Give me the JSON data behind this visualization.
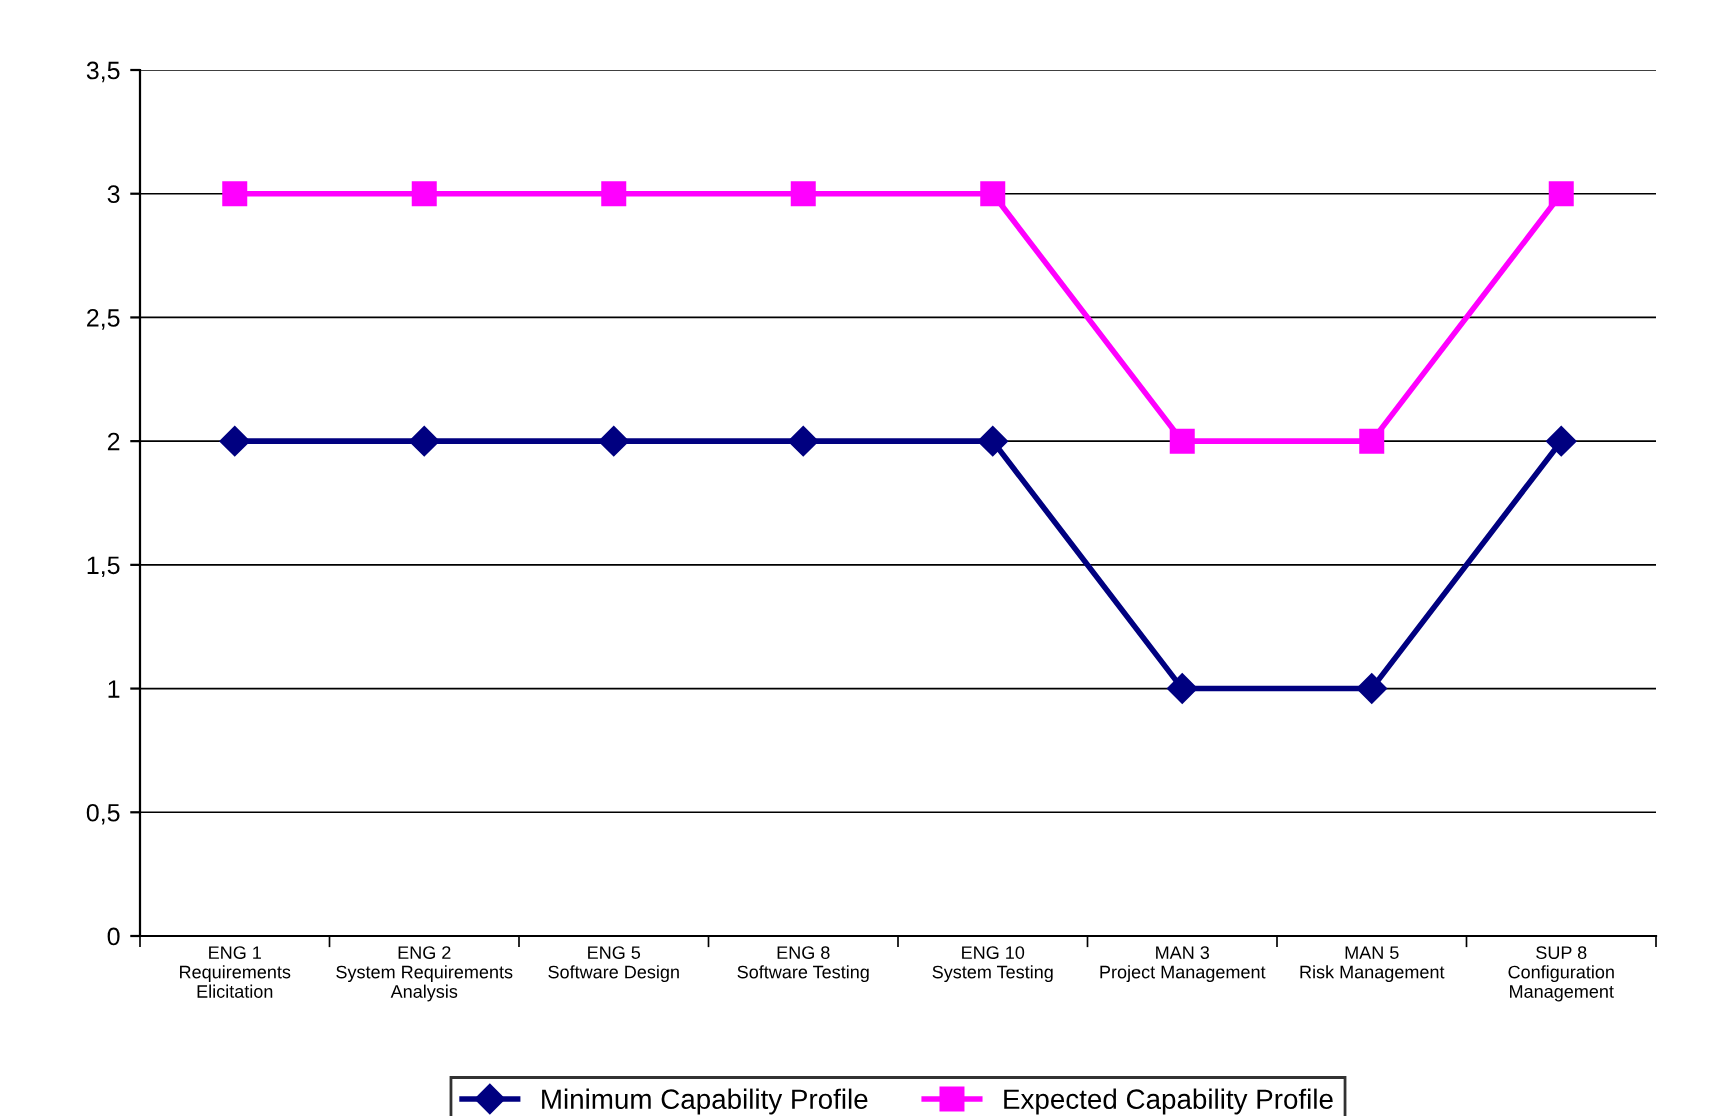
{
  "chart_data": {
    "type": "line",
    "categories": [
      "ENG 1\nRequirements\nElicitation",
      "ENG 2\nSystem Requirements\nAnalysis",
      "ENG 5\nSoftware Design",
      "ENG 8\nSoftware Testing",
      "ENG 10\nSystem Testing",
      "MAN 3\nProject Management",
      "MAN 5\nRisk Management",
      "SUP 8\nConfiguration\nManagement"
    ],
    "series": [
      {
        "name": "Minimum Capability Profile",
        "color": "#000080",
        "marker": "diamond",
        "values": [
          2,
          2,
          2,
          2,
          2,
          1,
          1,
          2
        ]
      },
      {
        "name": "Expected Capability Profile",
        "color": "#ff00ff",
        "marker": "square",
        "values": [
          3,
          3,
          3,
          3,
          3,
          2,
          2,
          3
        ]
      }
    ],
    "ylim": [
      0,
      3.5
    ],
    "yticks": [
      0,
      {
        "value": 0.5,
        "label": "0,5"
      },
      1,
      {
        "value": 1.5,
        "label": "1,5"
      },
      2,
      {
        "value": 2.5,
        "label": "2,5"
      },
      3,
      {
        "value": 3.5,
        "label": "3,5"
      }
    ],
    "grid": "y",
    "legend": "bottom",
    "line_style": "solid"
  }
}
